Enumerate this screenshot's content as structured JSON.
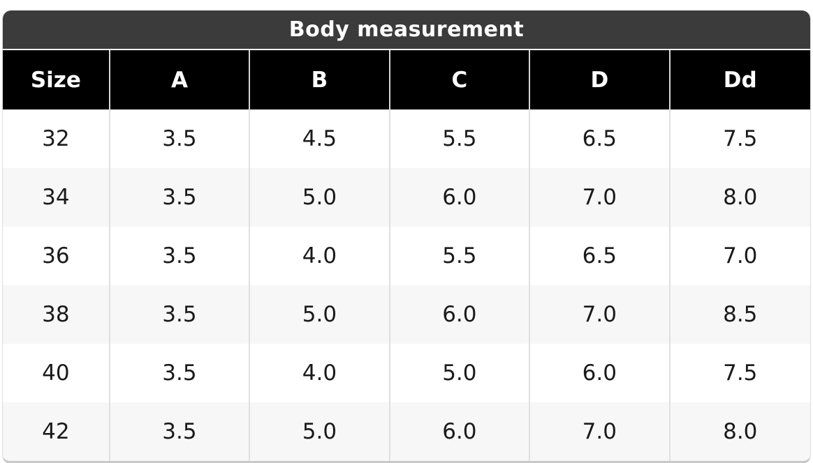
{
  "colors": {
    "title_bar_bg": "#3b3b3b",
    "header_bg": "#000000",
    "header_text": "#ffffff",
    "body_text": "#1a1a1a",
    "alt_row_bg": "#f7f7f7",
    "cell_border": "#e0e0e0",
    "outer_border": "#c9c9c9"
  },
  "table": {
    "title": "Body measurement",
    "columns": [
      "Size",
      "A",
      "B",
      "C",
      "D",
      "Dd"
    ],
    "rows": [
      [
        "32",
        "3.5",
        "4.5",
        "5.5",
        "6.5",
        "7.5"
      ],
      [
        "34",
        "3.5",
        "5.0",
        "6.0",
        "7.0",
        "8.0"
      ],
      [
        "36",
        "3.5",
        "4.0",
        "5.5",
        "6.5",
        "7.0"
      ],
      [
        "38",
        "3.5",
        "5.0",
        "6.0",
        "7.0",
        "8.5"
      ],
      [
        "40",
        "3.5",
        "4.0",
        "5.0",
        "6.0",
        "7.5"
      ],
      [
        "42",
        "3.5",
        "5.0",
        "6.0",
        "7.0",
        "8.0"
      ]
    ]
  },
  "chart_data": {
    "type": "table",
    "title": "Body measurement",
    "columns": [
      "Size",
      "A",
      "B",
      "C",
      "D",
      "Dd"
    ],
    "rows": [
      [
        32,
        3.5,
        4.5,
        5.5,
        6.5,
        7.5
      ],
      [
        34,
        3.5,
        5.0,
        6.0,
        7.0,
        8.0
      ],
      [
        36,
        3.5,
        4.0,
        5.5,
        6.5,
        7.0
      ],
      [
        38,
        3.5,
        5.0,
        6.0,
        7.0,
        8.5
      ],
      [
        40,
        3.5,
        4.0,
        5.0,
        6.0,
        7.5
      ],
      [
        42,
        3.5,
        5.0,
        6.0,
        7.0,
        8.0
      ]
    ],
    "layout": {
      "zebra_striping": true,
      "header_style": "black-bar",
      "title_position": "top-center"
    }
  }
}
